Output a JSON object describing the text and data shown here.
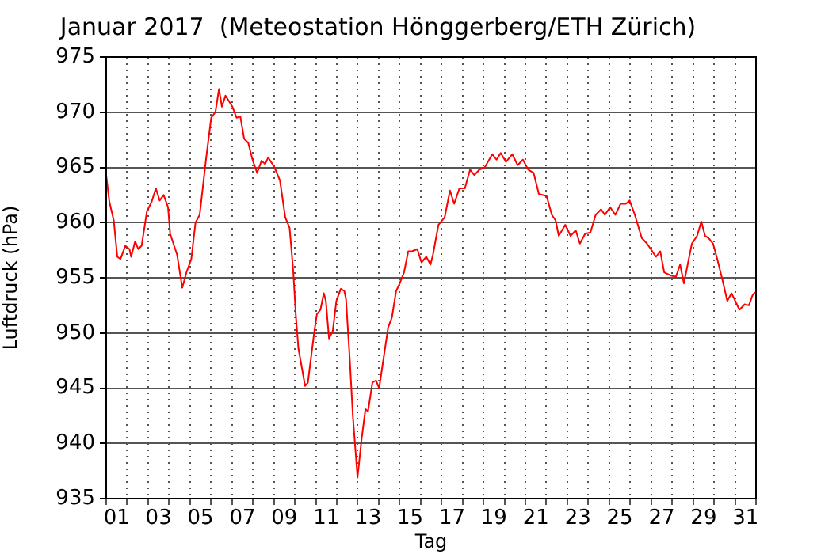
{
  "chart_data": {
    "type": "line",
    "title": "Januar 2017  (Meteostation Hönggerberg/ETH Zürich)",
    "xlabel": "Tag",
    "ylabel": "Luftdruck (hPa)",
    "xlim": [
      1,
      32
    ],
    "xticks": [
      {
        "value": 1,
        "label": null
      },
      {
        "value": 1.5,
        "label": "01"
      },
      {
        "value": 2,
        "label": null
      },
      {
        "value": 3,
        "label": null
      },
      {
        "value": 3.5,
        "label": "03"
      },
      {
        "value": 4,
        "label": null
      },
      {
        "value": 5,
        "label": null
      },
      {
        "value": 5.5,
        "label": "05"
      },
      {
        "value": 6,
        "label": null
      },
      {
        "value": 7,
        "label": null
      },
      {
        "value": 7.5,
        "label": "07"
      },
      {
        "value": 8,
        "label": null
      },
      {
        "value": 9,
        "label": null
      },
      {
        "value": 9.5,
        "label": "09"
      },
      {
        "value": 10,
        "label": null
      },
      {
        "value": 11,
        "label": null
      },
      {
        "value": 11.5,
        "label": "11"
      },
      {
        "value": 12,
        "label": null
      },
      {
        "value": 13,
        "label": null
      },
      {
        "value": 13.5,
        "label": "13"
      },
      {
        "value": 14,
        "label": null
      },
      {
        "value": 15,
        "label": null
      },
      {
        "value": 15.5,
        "label": "15"
      },
      {
        "value": 16,
        "label": null
      },
      {
        "value": 17,
        "label": null
      },
      {
        "value": 17.5,
        "label": "17"
      },
      {
        "value": 18,
        "label": null
      },
      {
        "value": 19,
        "label": null
      },
      {
        "value": 19.5,
        "label": "19"
      },
      {
        "value": 20,
        "label": null
      },
      {
        "value": 21,
        "label": null
      },
      {
        "value": 21.5,
        "label": "21"
      },
      {
        "value": 22,
        "label": null
      },
      {
        "value": 23,
        "label": null
      },
      {
        "value": 23.5,
        "label": "23"
      },
      {
        "value": 24,
        "label": null
      },
      {
        "value": 25,
        "label": null
      },
      {
        "value": 25.5,
        "label": "25"
      },
      {
        "value": 26,
        "label": null
      },
      {
        "value": 27,
        "label": null
      },
      {
        "value": 27.5,
        "label": "27"
      },
      {
        "value": 28,
        "label": null
      },
      {
        "value": 29,
        "label": null
      },
      {
        "value": 29.5,
        "label": "29"
      },
      {
        "value": 30,
        "label": null
      },
      {
        "value": 31,
        "label": null
      },
      {
        "value": 31.5,
        "label": "31"
      },
      {
        "value": 32,
        "label": null
      }
    ],
    "ylim": [
      935,
      975
    ],
    "yticks": [
      935,
      940,
      945,
      950,
      955,
      960,
      965,
      970,
      975
    ],
    "grid": true,
    "legend": false,
    "marker": "none",
    "line_style": "solid",
    "series": [
      {
        "color": "#ff0000",
        "x": [
          1.0,
          1.15,
          1.36,
          1.53,
          1.68,
          1.91,
          2.11,
          2.19,
          2.38,
          2.53,
          2.69,
          2.94,
          3.17,
          3.37,
          3.55,
          3.74,
          3.95,
          4.05,
          4.38,
          4.63,
          4.83,
          5.06,
          5.26,
          5.46,
          5.76,
          6.01,
          6.21,
          6.38,
          6.52,
          6.69,
          7.02,
          7.22,
          7.4,
          7.58,
          7.78,
          7.98,
          8.2,
          8.41,
          8.58,
          8.73,
          9.03,
          9.29,
          9.54,
          9.75,
          9.92,
          10.05,
          10.17,
          10.49,
          10.62,
          10.92,
          11.05,
          11.22,
          11.38,
          11.48,
          11.63,
          11.81,
          11.98,
          12.19,
          12.36,
          12.44,
          12.62,
          12.77,
          12.99,
          13.19,
          13.37,
          13.49,
          13.7,
          13.87,
          14.02,
          14.45,
          14.63,
          14.83,
          14.96,
          15.21,
          15.41,
          15.59,
          15.84,
          16.04,
          16.27,
          16.47,
          16.59,
          16.85,
          17.15,
          17.4,
          17.6,
          17.85,
          18.11,
          18.36,
          18.56,
          18.81,
          19.06,
          19.42,
          19.62,
          19.82,
          20.07,
          20.37,
          20.63,
          20.88,
          21.13,
          21.39,
          21.64,
          22.01,
          22.26,
          22.44,
          22.59,
          22.9,
          23.15,
          23.4,
          23.6,
          23.85,
          24.1,
          24.35,
          24.61,
          24.79,
          25.04,
          25.29,
          25.54,
          25.79,
          25.97,
          26.22,
          26.55,
          26.8,
          27.05,
          27.23,
          27.43,
          27.62,
          27.93,
          28.18,
          28.38,
          28.56,
          28.74,
          28.94,
          29.19,
          29.39,
          29.57,
          29.74,
          29.95,
          30.15,
          30.4,
          30.63,
          30.83,
          31.01,
          31.21,
          31.46,
          31.66,
          31.83,
          31.95
        ],
        "values": [
          964.3,
          961.9,
          960.2,
          956.9,
          956.7,
          957.9,
          957.6,
          956.9,
          958.3,
          957.6,
          957.9,
          961.0,
          961.9,
          963.1,
          962.0,
          962.5,
          961.4,
          959.0,
          957.1,
          954.1,
          955.5,
          956.7,
          960.0,
          960.7,
          965.7,
          969.5,
          970.0,
          972.1,
          970.5,
          971.5,
          970.5,
          969.5,
          969.6,
          967.6,
          967.2,
          965.7,
          964.5,
          965.6,
          965.3,
          965.9,
          965.0,
          963.8,
          960.5,
          959.5,
          955.7,
          951.5,
          948.6,
          945.2,
          945.5,
          950.0,
          951.7,
          952.1,
          953.6,
          952.9,
          949.5,
          950.2,
          952.9,
          954.0,
          953.8,
          953.1,
          947.6,
          942.4,
          936.9,
          940.5,
          943.1,
          942.9,
          945.5,
          945.7,
          945.0,
          950.5,
          951.4,
          953.8,
          954.3,
          955.5,
          957.4,
          957.4,
          957.6,
          956.4,
          956.9,
          956.2,
          957.1,
          959.8,
          960.5,
          962.9,
          961.7,
          963.1,
          963.1,
          964.8,
          964.3,
          964.8,
          965.0,
          966.2,
          965.7,
          966.3,
          965.5,
          966.2,
          965.2,
          965.7,
          964.8,
          964.5,
          962.6,
          962.4,
          960.7,
          960.2,
          958.8,
          959.8,
          958.8,
          959.3,
          958.1,
          959.0,
          959.1,
          960.7,
          961.2,
          960.7,
          961.4,
          960.7,
          961.7,
          961.7,
          962.0,
          960.7,
          958.6,
          958.1,
          957.4,
          956.9,
          957.4,
          955.5,
          955.2,
          955.1,
          956.2,
          954.5,
          956.2,
          958.1,
          958.8,
          960.1,
          958.8,
          958.6,
          958.1,
          956.7,
          954.8,
          952.9,
          953.6,
          952.9,
          952.1,
          952.6,
          952.5,
          953.4,
          953.7
        ]
      }
    ]
  }
}
